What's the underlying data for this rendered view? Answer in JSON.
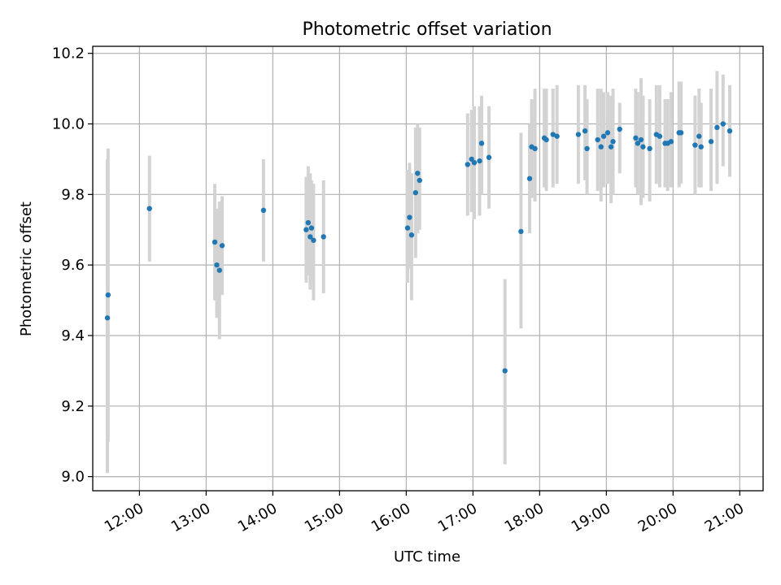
{
  "chart_data": {
    "type": "scatter",
    "title": "Photometric offset variation",
    "xlabel": "UTC time",
    "ylabel": "Photometric offset",
    "xlim_hours": [
      11.3,
      21.35
    ],
    "ylim": [
      8.96,
      10.22
    ],
    "x_ticks": [
      {
        "hour": 12,
        "label": "12:00"
      },
      {
        "hour": 13,
        "label": "13:00"
      },
      {
        "hour": 14,
        "label": "14:00"
      },
      {
        "hour": 15,
        "label": "15:00"
      },
      {
        "hour": 16,
        "label": "16:00"
      },
      {
        "hour": 17,
        "label": "17:00"
      },
      {
        "hour": 18,
        "label": "18:00"
      },
      {
        "hour": 19,
        "label": "19:00"
      },
      {
        "hour": 20,
        "label": "20:00"
      },
      {
        "hour": 21,
        "label": "21:00"
      }
    ],
    "y_ticks": [
      {
        "value": 9.0,
        "label": "9.0"
      },
      {
        "value": 9.2,
        "label": "9.2"
      },
      {
        "value": 9.4,
        "label": "9.4"
      },
      {
        "value": 9.6,
        "label": "9.6"
      },
      {
        "value": 9.8,
        "label": "9.8"
      },
      {
        "value": 10.0,
        "label": "10.0"
      },
      {
        "value": 10.2,
        "label": "10.2"
      }
    ],
    "grid": true,
    "marker_color": "#1f77b4",
    "errorbar_color": "#d3d3d3",
    "series": [
      {
        "name": "offset",
        "points": [
          {
            "t": 11.52,
            "y": 9.45,
            "lo": 9.01,
            "hi": 9.9
          },
          {
            "t": 11.53,
            "y": 9.515,
            "lo": 9.1,
            "hi": 9.93
          },
          {
            "t": 12.15,
            "y": 9.76,
            "lo": 9.61,
            "hi": 9.91
          },
          {
            "t": 13.13,
            "y": 9.665,
            "lo": 9.5,
            "hi": 9.83
          },
          {
            "t": 13.16,
            "y": 9.6,
            "lo": 9.45,
            "hi": 9.76
          },
          {
            "t": 13.2,
            "y": 9.585,
            "lo": 9.39,
            "hi": 9.78
          },
          {
            "t": 13.24,
            "y": 9.655,
            "lo": 9.515,
            "hi": 9.795
          },
          {
            "t": 13.86,
            "y": 9.755,
            "lo": 9.61,
            "hi": 9.9
          },
          {
            "t": 14.5,
            "y": 9.7,
            "lo": 9.55,
            "hi": 9.85
          },
          {
            "t": 14.53,
            "y": 9.72,
            "lo": 9.57,
            "hi": 9.88
          },
          {
            "t": 14.56,
            "y": 9.68,
            "lo": 9.53,
            "hi": 9.86
          },
          {
            "t": 14.58,
            "y": 9.705,
            "lo": 9.55,
            "hi": 9.84
          },
          {
            "t": 14.61,
            "y": 9.67,
            "lo": 9.5,
            "hi": 9.83
          },
          {
            "t": 14.76,
            "y": 9.68,
            "lo": 9.52,
            "hi": 9.84
          },
          {
            "t": 16.02,
            "y": 9.705,
            "lo": 9.55,
            "hi": 9.87
          },
          {
            "t": 16.05,
            "y": 9.735,
            "lo": 9.59,
            "hi": 9.89
          },
          {
            "t": 16.08,
            "y": 9.685,
            "lo": 9.5,
            "hi": 9.86
          },
          {
            "t": 16.14,
            "y": 9.805,
            "lo": 9.62,
            "hi": 9.99
          },
          {
            "t": 16.17,
            "y": 9.86,
            "lo": 9.69,
            "hi": 10.0
          },
          {
            "t": 16.2,
            "y": 9.84,
            "lo": 9.7,
            "hi": 9.99
          },
          {
            "t": 16.92,
            "y": 9.885,
            "lo": 9.74,
            "hi": 10.03
          },
          {
            "t": 16.98,
            "y": 9.9,
            "lo": 9.75,
            "hi": 10.04
          },
          {
            "t": 17.02,
            "y": 9.89,
            "lo": 9.73,
            "hi": 10.05
          },
          {
            "t": 17.1,
            "y": 9.895,
            "lo": 9.74,
            "hi": 10.05
          },
          {
            "t": 17.13,
            "y": 9.945,
            "lo": 9.8,
            "hi": 10.08
          },
          {
            "t": 17.24,
            "y": 9.905,
            "lo": 9.76,
            "hi": 10.05
          },
          {
            "t": 17.48,
            "y": 9.3,
            "lo": 9.035,
            "hi": 9.56
          },
          {
            "t": 17.72,
            "y": 9.695,
            "lo": 9.42,
            "hi": 9.975
          },
          {
            "t": 17.85,
            "y": 9.845,
            "lo": 9.69,
            "hi": 10.0
          },
          {
            "t": 17.88,
            "y": 9.935,
            "lo": 9.79,
            "hi": 10.07
          },
          {
            "t": 17.93,
            "y": 9.93,
            "lo": 9.78,
            "hi": 10.1
          },
          {
            "t": 18.07,
            "y": 9.96,
            "lo": 9.82,
            "hi": 10.1
          },
          {
            "t": 18.1,
            "y": 9.955,
            "lo": 9.81,
            "hi": 10.1
          },
          {
            "t": 18.2,
            "y": 9.97,
            "lo": 9.82,
            "hi": 10.1
          },
          {
            "t": 18.26,
            "y": 9.965,
            "lo": 9.83,
            "hi": 10.11
          },
          {
            "t": 18.58,
            "y": 9.97,
            "lo": 9.83,
            "hi": 10.11
          },
          {
            "t": 18.68,
            "y": 9.98,
            "lo": 9.84,
            "hi": 10.11
          },
          {
            "t": 18.71,
            "y": 9.93,
            "lo": 9.8,
            "hi": 10.07
          },
          {
            "t": 18.87,
            "y": 9.955,
            "lo": 9.81,
            "hi": 10.1
          },
          {
            "t": 18.92,
            "y": 9.935,
            "lo": 9.78,
            "hi": 10.1
          },
          {
            "t": 18.96,
            "y": 9.965,
            "lo": 9.82,
            "hi": 10.09
          },
          {
            "t": 19.02,
            "y": 9.975,
            "lo": 9.83,
            "hi": 10.09
          },
          {
            "t": 19.07,
            "y": 9.935,
            "lo": 9.775,
            "hi": 10.08
          },
          {
            "t": 19.1,
            "y": 9.95,
            "lo": 9.8,
            "hi": 10.1
          },
          {
            "t": 19.2,
            "y": 9.985,
            "lo": 9.86,
            "hi": 10.06
          },
          {
            "t": 19.44,
            "y": 9.96,
            "lo": 9.82,
            "hi": 10.1
          },
          {
            "t": 19.47,
            "y": 9.945,
            "lo": 9.8,
            "hi": 10.09
          },
          {
            "t": 19.52,
            "y": 9.955,
            "lo": 9.77,
            "hi": 10.13
          },
          {
            "t": 19.55,
            "y": 9.935,
            "lo": 9.79,
            "hi": 10.08
          },
          {
            "t": 19.65,
            "y": 9.93,
            "lo": 9.78,
            "hi": 10.07
          },
          {
            "t": 19.75,
            "y": 9.97,
            "lo": 9.83,
            "hi": 10.11
          },
          {
            "t": 19.8,
            "y": 9.965,
            "lo": 9.82,
            "hi": 10.11
          },
          {
            "t": 19.88,
            "y": 9.945,
            "lo": 9.82,
            "hi": 10.07
          },
          {
            "t": 19.92,
            "y": 9.945,
            "lo": 9.81,
            "hi": 10.07
          },
          {
            "t": 19.97,
            "y": 9.95,
            "lo": 9.82,
            "hi": 10.09
          },
          {
            "t": 20.09,
            "y": 9.975,
            "lo": 9.82,
            "hi": 10.12
          },
          {
            "t": 20.12,
            "y": 9.975,
            "lo": 9.83,
            "hi": 10.12
          },
          {
            "t": 20.33,
            "y": 9.94,
            "lo": 9.8,
            "hi": 10.08
          },
          {
            "t": 20.39,
            "y": 9.965,
            "lo": 9.82,
            "hi": 10.1
          },
          {
            "t": 20.42,
            "y": 9.935,
            "lo": 9.82,
            "hi": 10.06
          },
          {
            "t": 20.57,
            "y": 9.95,
            "lo": 9.81,
            "hi": 10.1
          },
          {
            "t": 20.66,
            "y": 9.99,
            "lo": 9.83,
            "hi": 10.15
          },
          {
            "t": 20.75,
            "y": 10.0,
            "lo": 9.88,
            "hi": 10.14
          },
          {
            "t": 20.85,
            "y": 9.98,
            "lo": 9.85,
            "hi": 10.11
          }
        ]
      }
    ]
  }
}
